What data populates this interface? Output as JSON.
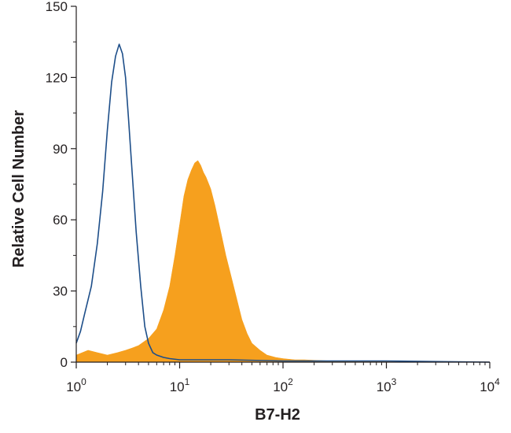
{
  "chart_data": {
    "type": "area",
    "xlabel": "B7-H2",
    "ylabel": "Relative Cell Number",
    "x_scale": "log",
    "xlim": [
      1,
      10000
    ],
    "ylim": [
      0,
      150
    ],
    "x_ticks": [
      {
        "value": 1,
        "base": "10",
        "exp": "0"
      },
      {
        "value": 10,
        "base": "10",
        "exp": "1"
      },
      {
        "value": 100,
        "base": "10",
        "exp": "2"
      },
      {
        "value": 1000,
        "base": "10",
        "exp": "3"
      },
      {
        "value": 10000,
        "base": "10",
        "exp": "4"
      }
    ],
    "y_ticks": [
      0,
      30,
      60,
      90,
      120,
      150
    ],
    "grid": false,
    "legend": "none",
    "series": [
      {
        "style": "filled",
        "color": "#f6a01e",
        "x": [
          1.0,
          1.3,
          1.6,
          2.0,
          2.5,
          3.0,
          3.5,
          4.0,
          5.0,
          6.0,
          7.0,
          8.0,
          9.0,
          10.0,
          11.0,
          12.0,
          13.0,
          14.0,
          15.0,
          16.0,
          17.0,
          18.0,
          20.0,
          22.0,
          25.0,
          28.0,
          32.0,
          36.0,
          40.0,
          45.0,
          50.0,
          60.0,
          70.0,
          85.0,
          100.0,
          130.0,
          160.0,
          200.0,
          300.0,
          500.0,
          1000.0,
          3000.0,
          10000.0
        ],
        "y": [
          3,
          5,
          4,
          3,
          4,
          5,
          6,
          7,
          10,
          14,
          22,
          32,
          45,
          58,
          70,
          77,
          81,
          84,
          85,
          83,
          80,
          78,
          73,
          66,
          55,
          45,
          35,
          26,
          18,
          12,
          8,
          5,
          3,
          2,
          1.5,
          1,
          1,
          0.8,
          0.5,
          0.3,
          0.2,
          0.1,
          0
        ]
      },
      {
        "style": "outline",
        "color": "#1d4e89",
        "x": [
          1.0,
          1.1,
          1.2,
          1.4,
          1.6,
          1.8,
          2.0,
          2.2,
          2.4,
          2.6,
          2.8,
          3.0,
          3.2,
          3.5,
          3.8,
          4.2,
          4.6,
          5.0,
          5.5,
          6.0,
          7.0,
          8.0,
          10.0,
          15.0,
          30.0,
          100.0,
          1000.0,
          10000.0
        ],
        "y": [
          8,
          13,
          20,
          32,
          50,
          72,
          98,
          118,
          129,
          134,
          130,
          120,
          103,
          78,
          55,
          32,
          15,
          8,
          4,
          3,
          2,
          1.5,
          1,
          1,
          1,
          0.5,
          0.5,
          0
        ]
      }
    ]
  }
}
